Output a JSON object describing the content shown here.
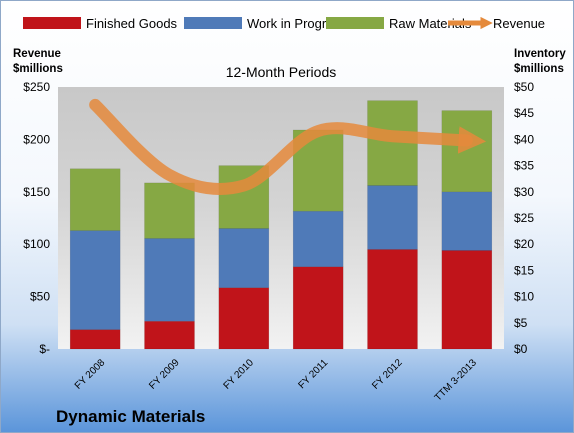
{
  "chart_data": {
    "type": "bar",
    "subtitle": "12-Month Periods",
    "company": "Dynamic Materials",
    "left_axis_label": [
      "Revenue",
      "$millions"
    ],
    "right_axis_label": [
      "Inventory",
      "$millions"
    ],
    "categories": [
      "FY 2008",
      "FY 2009",
      "FY 2010",
      "FY 2011",
      "FY 2012",
      "TTM 3-2013"
    ],
    "left_ylim": [
      0,
      250
    ],
    "right_ylim": [
      0,
      50
    ],
    "left_ticks": [
      "$-",
      "$50",
      "$100",
      "$150",
      "$200",
      "$250"
    ],
    "right_ticks": [
      "$0",
      "$5",
      "$10",
      "$15",
      "$20",
      "$25",
      "$30",
      "$35",
      "$40",
      "$45",
      "$50"
    ],
    "stacked_axis": "right",
    "series": [
      {
        "name": "Finished Goods",
        "color": "#c0141a",
        "values": [
          3.7,
          5.3,
          11.7,
          15.7,
          19.0,
          18.8
        ]
      },
      {
        "name": "Work in Progress",
        "color": "#4f7ab8",
        "values": [
          18.9,
          15.8,
          11.3,
          10.6,
          12.2,
          11.2
        ]
      },
      {
        "name": "Raw Materials",
        "color": "#86a844",
        "values": [
          11.8,
          10.6,
          12.0,
          15.5,
          16.2,
          15.5
        ]
      }
    ],
    "line_series": {
      "name": "Revenue",
      "color": "#e58a3c",
      "axis": "left",
      "values": [
        233,
        166,
        156,
        208,
        203,
        199
      ]
    },
    "grid": false,
    "legend_position": "top"
  }
}
